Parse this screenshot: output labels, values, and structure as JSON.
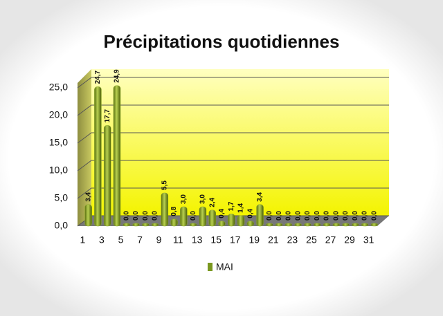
{
  "chart_data": {
    "type": "bar",
    "title": "Précipitations quotidiennes",
    "categories": [
      "1",
      null,
      "3",
      null,
      "5",
      null,
      "7",
      null,
      "9",
      null,
      "11",
      null,
      "13",
      null,
      "15",
      null,
      "17",
      null,
      "19",
      null,
      "21",
      null,
      "23",
      null,
      "25",
      null,
      "27",
      null,
      "29",
      null,
      "31"
    ],
    "series": [
      {
        "name": "MAI",
        "color": "#8aa82a",
        "values": [
          3.4,
          24.7,
          17.7,
          24.9,
          0,
          0,
          0,
          0,
          5.5,
          0.8,
          3.0,
          0,
          3.0,
          2.4,
          0.4,
          1.7,
          1.4,
          0.4,
          3.4,
          0,
          0,
          0,
          0,
          0,
          0,
          0,
          0,
          0,
          0,
          0,
          0
        ],
        "value_labels": [
          "3,4",
          "24,7",
          "17,7",
          "24,9",
          "0,0",
          "0,0",
          "0,0",
          "0,0",
          "5,5",
          "0,8",
          "3,0",
          "0,0",
          "3,0",
          "2,4",
          "0,4",
          "1,7",
          "1,4",
          "0,4",
          "3,4",
          "0,0",
          "0,0",
          "0,0",
          "0,0",
          "0,0",
          "0,0",
          "0,0",
          "0,0",
          "0,0",
          "0,0",
          "0,0",
          "0,0"
        ]
      }
    ],
    "ylim": [
      0,
      25
    ],
    "yticks": [
      {
        "value": 0,
        "label": "0,0"
      },
      {
        "value": 5,
        "label": "5,0"
      },
      {
        "value": 10,
        "label": "10,0"
      },
      {
        "value": 15,
        "label": "15,0"
      },
      {
        "value": 20,
        "label": "20,0"
      },
      {
        "value": 25,
        "label": "25,0"
      }
    ],
    "grid": true,
    "legend": "bottom"
  }
}
